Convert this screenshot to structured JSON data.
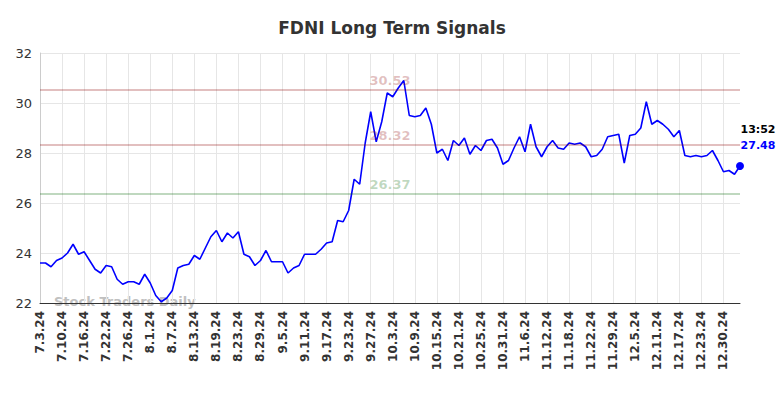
{
  "chart_data": {
    "type": "line",
    "title": "FDNI Long Term Signals",
    "categories": [
      "7.3.24",
      null,
      null,
      null,
      "7.10.24",
      null,
      null,
      null,
      "7.16.24",
      null,
      null,
      null,
      "7.22.24",
      null,
      null,
      null,
      "7.26.24",
      null,
      null,
      null,
      "8.1.24",
      null,
      null,
      null,
      "8.7.24",
      null,
      null,
      null,
      "8.13.24",
      null,
      null,
      null,
      "8.19.24",
      null,
      null,
      null,
      "8.23.24",
      null,
      null,
      null,
      "8.29.24",
      null,
      null,
      null,
      "9.5.24",
      null,
      null,
      null,
      "9.11.24",
      null,
      null,
      null,
      "9.17.24",
      null,
      null,
      null,
      "9.23.24",
      null,
      null,
      null,
      "9.27.24",
      null,
      null,
      null,
      "10.3.24",
      null,
      null,
      null,
      "10.9.24",
      null,
      null,
      null,
      "10.15.24",
      null,
      null,
      null,
      "10.21.24",
      null,
      null,
      null,
      "10.25.24",
      null,
      null,
      null,
      "10.31.24",
      null,
      null,
      null,
      "11.6.24",
      null,
      null,
      null,
      "11.12.24",
      null,
      null,
      null,
      "11.18.24",
      null,
      null,
      null,
      "11.22.24",
      null,
      null,
      null,
      "11.29.24",
      null,
      null,
      null,
      "12.5.24",
      null,
      null,
      null,
      "12.11.24",
      null,
      null,
      null,
      "12.17.24",
      null,
      null,
      null,
      "12.23.24",
      null,
      null,
      null,
      "12.30.24",
      null,
      null,
      null
    ],
    "values": [
      23.6,
      23.6,
      23.45,
      23.7,
      23.8,
      24.0,
      24.35,
      23.95,
      24.05,
      23.7,
      23.35,
      23.2,
      23.5,
      23.45,
      22.95,
      22.75,
      22.85,
      22.85,
      22.75,
      23.15,
      22.8,
      22.3,
      22.05,
      22.2,
      22.5,
      23.4,
      23.5,
      23.55,
      23.9,
      23.75,
      24.2,
      24.65,
      24.9,
      24.45,
      24.8,
      24.6,
      24.85,
      23.95,
      23.85,
      23.5,
      23.7,
      24.1,
      23.65,
      23.65,
      23.65,
      23.2,
      23.4,
      23.5,
      23.95,
      23.95,
      23.95,
      24.15,
      24.4,
      24.45,
      25.3,
      25.25,
      25.7,
      26.95,
      26.75,
      28.4,
      29.65,
      28.45,
      29.25,
      30.4,
      30.25,
      30.6,
      30.9,
      29.5,
      29.45,
      29.5,
      29.8,
      29.15,
      28.0,
      28.15,
      27.7,
      28.5,
      28.3,
      28.6,
      27.95,
      28.3,
      28.1,
      28.5,
      28.55,
      28.2,
      27.55,
      27.7,
      28.2,
      28.65,
      28.05,
      29.15,
      28.25,
      27.85,
      28.25,
      28.5,
      28.2,
      28.15,
      28.4,
      28.35,
      28.4,
      28.25,
      27.85,
      27.9,
      28.15,
      28.65,
      28.7,
      28.75,
      27.6,
      28.7,
      28.75,
      29.0,
      30.05,
      29.15,
      29.3,
      29.15,
      28.95,
      28.65,
      28.9,
      27.9,
      27.85,
      27.9,
      27.85,
      27.9,
      28.1,
      27.7,
      27.25,
      27.3,
      27.15,
      27.48
    ],
    "color": "#0000ff",
    "ylim": [
      22,
      32
    ],
    "yticks": [
      22,
      24,
      26,
      28,
      30,
      32
    ],
    "grid": true,
    "reference_lines": [
      {
        "value": 30.53,
        "label": "30.53",
        "color": "#8b0000"
      },
      {
        "value": 28.32,
        "label": "28.32",
        "color": "#8b0000"
      },
      {
        "value": 26.37,
        "label": "26.37",
        "color": "#006400"
      }
    ],
    "last_point": {
      "time": "13:52",
      "value": 27.48
    },
    "watermark": "Stock Traders Daily"
  }
}
